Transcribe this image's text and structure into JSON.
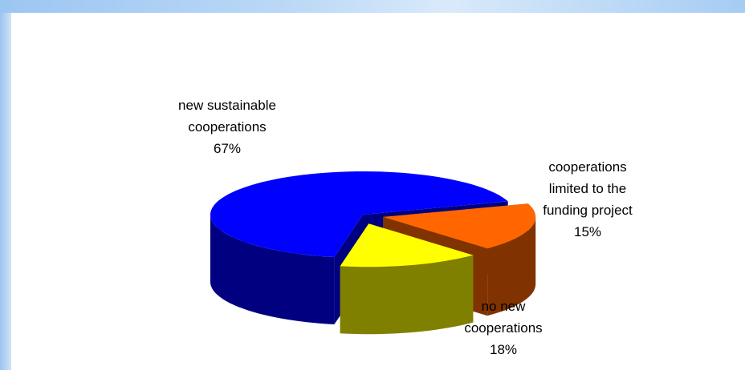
{
  "chart_data": {
    "type": "pie",
    "style": "3d-exploded",
    "slices": [
      {
        "name": "new sustainable cooperations",
        "label_lines": [
          "new sustainable",
          "cooperations"
        ],
        "percent_label": "67%",
        "value": 67,
        "color": "#0000ff",
        "side_color": "#000080"
      },
      {
        "name": "cooperations limited to the funding project",
        "label_lines": [
          "cooperations",
          "limited to the",
          "funding project"
        ],
        "percent_label": "15%",
        "value": 15,
        "color": "#ffff00",
        "side_color": "#808000"
      },
      {
        "name": "no new cooperations",
        "label_lines": [
          "no new",
          "cooperations"
        ],
        "percent_label": "18%",
        "value": 18,
        "color": "#ff6600",
        "side_color": "#803300"
      }
    ],
    "legend": "none"
  }
}
